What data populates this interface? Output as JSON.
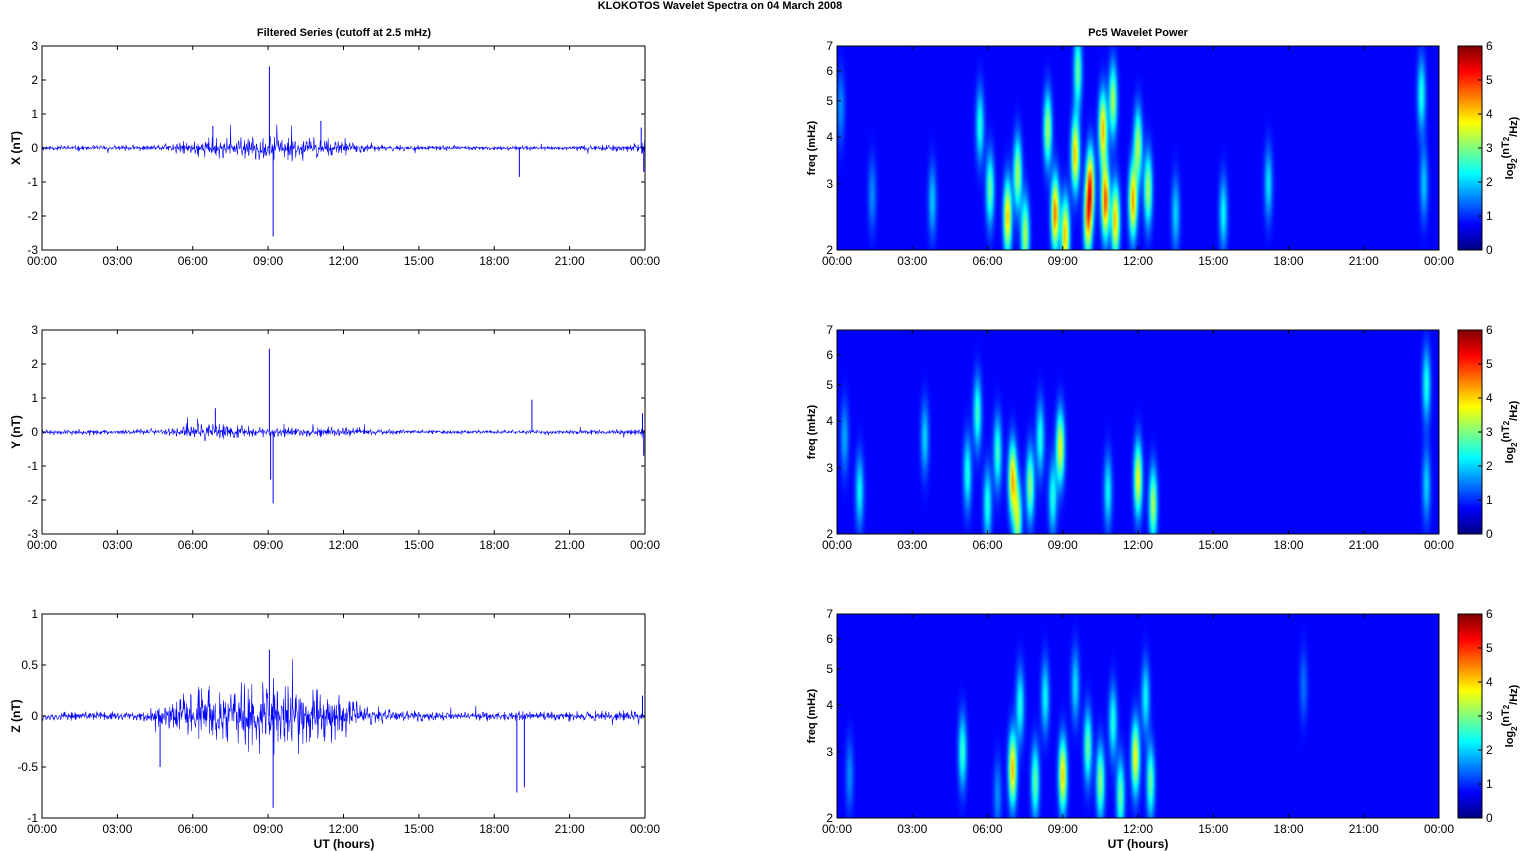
{
  "figure": {
    "suptitle": "KLOKOTOS Wavelet Spectra on 04 March     2008",
    "left_title": "Filtered Series (cutoff at 2.5 mHz)",
    "right_title": "Pc5 Wavelet Power",
    "xlabel": "UT (hours)"
  },
  "colors": {
    "series": "#0000ff",
    "axes": "#000000",
    "background": "#ffffff",
    "colormap": [
      "#00008f",
      "#0000ff",
      "#00ffff",
      "#ffff00",
      "#ff0000",
      "#800000"
    ]
  },
  "chart_data": [
    {
      "id": "x-series",
      "type": "line",
      "ylabel": "X (nT)",
      "xlim": [
        0,
        24
      ],
      "ylim": [
        -3,
        3
      ],
      "yticks": [
        -3,
        -2,
        -1,
        0,
        1,
        2,
        3
      ],
      "xtick_labels": [
        "00:00",
        "03:00",
        "06:00",
        "09:00",
        "12:00",
        "15:00",
        "18:00",
        "21:00",
        "00:00"
      ],
      "envelope": [
        {
          "x": 0.0,
          "amp": 0.08
        },
        {
          "x": 2.0,
          "amp": 0.08
        },
        {
          "x": 4.5,
          "amp": 0.1
        },
        {
          "x": 5.5,
          "amp": 0.2
        },
        {
          "x": 6.5,
          "amp": 0.35
        },
        {
          "x": 8.0,
          "amp": 0.35
        },
        {
          "x": 9.0,
          "amp": 0.45
        },
        {
          "x": 10.5,
          "amp": 0.4
        },
        {
          "x": 12.0,
          "amp": 0.25
        },
        {
          "x": 13.0,
          "amp": 0.12
        },
        {
          "x": 15.0,
          "amp": 0.08
        },
        {
          "x": 18.0,
          "amp": 0.07
        },
        {
          "x": 21.0,
          "amp": 0.07
        },
        {
          "x": 23.8,
          "amp": 0.15
        },
        {
          "x": 24.0,
          "amp": 0.4
        }
      ],
      "spikes": [
        {
          "x": 9.05,
          "y": 2.4
        },
        {
          "x": 9.2,
          "y": -2.6
        },
        {
          "x": 6.8,
          "y": 0.65
        },
        {
          "x": 11.1,
          "y": 0.8
        },
        {
          "x": 19.0,
          "y": -0.85
        },
        {
          "x": 23.85,
          "y": 0.6
        },
        {
          "x": 23.95,
          "y": -0.7
        }
      ]
    },
    {
      "id": "y-series",
      "type": "line",
      "ylabel": "Y (nT)",
      "xlim": [
        0,
        24
      ],
      "ylim": [
        -3,
        3
      ],
      "yticks": [
        -3,
        -2,
        -1,
        0,
        1,
        2,
        3
      ],
      "xtick_labels": [
        "00:00",
        "03:00",
        "06:00",
        "09:00",
        "12:00",
        "15:00",
        "18:00",
        "21:00",
        "00:00"
      ],
      "envelope": [
        {
          "x": 0.0,
          "amp": 0.09
        },
        {
          "x": 3.0,
          "amp": 0.08
        },
        {
          "x": 5.0,
          "amp": 0.12
        },
        {
          "x": 6.5,
          "amp": 0.3
        },
        {
          "x": 8.0,
          "amp": 0.25
        },
        {
          "x": 10.0,
          "amp": 0.15
        },
        {
          "x": 12.0,
          "amp": 0.2
        },
        {
          "x": 13.0,
          "amp": 0.1
        },
        {
          "x": 16.0,
          "amp": 0.07
        },
        {
          "x": 20.0,
          "amp": 0.06
        },
        {
          "x": 23.8,
          "amp": 0.1
        },
        {
          "x": 24.0,
          "amp": 0.3
        }
      ],
      "spikes": [
        {
          "x": 9.05,
          "y": 2.45
        },
        {
          "x": 9.1,
          "y": -1.4
        },
        {
          "x": 9.2,
          "y": -2.1
        },
        {
          "x": 6.9,
          "y": 0.7
        },
        {
          "x": 19.5,
          "y": 0.95
        },
        {
          "x": 23.9,
          "y": 0.55
        },
        {
          "x": 23.95,
          "y": -0.7
        }
      ]
    },
    {
      "id": "z-series",
      "type": "line",
      "ylabel": "Z (nT)",
      "xlim": [
        0,
        24
      ],
      "ylim": [
        -1,
        1
      ],
      "yticks": [
        -1,
        -0.5,
        0,
        0.5,
        1
      ],
      "xtick_labels": [
        "00:00",
        "03:00",
        "06:00",
        "09:00",
        "12:00",
        "15:00",
        "18:00",
        "21:00",
        "00:00"
      ],
      "envelope": [
        {
          "x": 0.0,
          "amp": 0.05
        },
        {
          "x": 4.0,
          "amp": 0.05
        },
        {
          "x": 5.0,
          "amp": 0.15
        },
        {
          "x": 6.0,
          "amp": 0.3
        },
        {
          "x": 7.5,
          "amp": 0.35
        },
        {
          "x": 9.0,
          "amp": 0.4
        },
        {
          "x": 10.5,
          "amp": 0.35
        },
        {
          "x": 12.0,
          "amp": 0.25
        },
        {
          "x": 13.0,
          "amp": 0.1
        },
        {
          "x": 16.0,
          "amp": 0.05
        },
        {
          "x": 20.0,
          "amp": 0.05
        },
        {
          "x": 24.0,
          "amp": 0.06
        }
      ],
      "spikes": [
        {
          "x": 9.05,
          "y": 0.65
        },
        {
          "x": 9.2,
          "y": -0.9
        },
        {
          "x": 4.7,
          "y": -0.5
        },
        {
          "x": 18.9,
          "y": -0.75
        },
        {
          "x": 19.2,
          "y": -0.7
        },
        {
          "x": 23.9,
          "y": 0.2
        }
      ]
    },
    {
      "id": "x-wavelet",
      "type": "heatmap",
      "ylabel": "freq (mHz)",
      "colorbar_label": "log2(nT2/Hz)",
      "xlim": [
        0,
        24
      ],
      "ylim": [
        2,
        7
      ],
      "yscale": "log",
      "yticks": [
        2,
        3,
        4,
        5,
        6,
        7
      ],
      "clim": [
        0,
        6
      ],
      "cticks": [
        0,
        1,
        2,
        3,
        4,
        5,
        6
      ],
      "xtick_labels": [
        "00:00",
        "03:00",
        "06:00",
        "09:00",
        "12:00",
        "15:00",
        "18:00",
        "21:00",
        "00:00"
      ],
      "blobs": [
        {
          "t": 0.15,
          "f": 4.8,
          "v": 1.0
        },
        {
          "t": 1.4,
          "f": 2.8,
          "v": 1.0
        },
        {
          "t": 3.8,
          "f": 2.7,
          "v": 1.4
        },
        {
          "t": 5.7,
          "f": 4.3,
          "v": 2.0
        },
        {
          "t": 6.1,
          "f": 2.9,
          "v": 2.5
        },
        {
          "t": 6.8,
          "f": 2.45,
          "v": 4.0
        },
        {
          "t": 7.2,
          "f": 3.2,
          "v": 3.0
        },
        {
          "t": 7.5,
          "f": 2.2,
          "v": 3.0
        },
        {
          "t": 8.4,
          "f": 4.2,
          "v": 3.0
        },
        {
          "t": 8.7,
          "f": 2.5,
          "v": 4.5
        },
        {
          "t": 9.1,
          "f": 2.2,
          "v": 4.0
        },
        {
          "t": 9.5,
          "f": 3.6,
          "v": 4.0
        },
        {
          "t": 9.6,
          "f": 6.0,
          "v": 2.5
        },
        {
          "t": 10.0,
          "f": 2.4,
          "v": 3.8
        },
        {
          "t": 10.1,
          "f": 3.0,
          "v": 4.2
        },
        {
          "t": 10.6,
          "f": 4.2,
          "v": 4.0
        },
        {
          "t": 10.7,
          "f": 2.7,
          "v": 4.8
        },
        {
          "t": 11.0,
          "f": 5.0,
          "v": 3.0
        },
        {
          "t": 11.1,
          "f": 2.4,
          "v": 4.0
        },
        {
          "t": 11.8,
          "f": 2.7,
          "v": 4.2
        },
        {
          "t": 12.0,
          "f": 3.8,
          "v": 3.0
        },
        {
          "t": 12.4,
          "f": 2.9,
          "v": 3.0
        },
        {
          "t": 13.5,
          "f": 2.5,
          "v": 1.5
        },
        {
          "t": 15.4,
          "f": 2.5,
          "v": 1.8
        },
        {
          "t": 17.2,
          "f": 3.0,
          "v": 1.6
        },
        {
          "t": 23.3,
          "f": 5.2,
          "v": 2.0
        },
        {
          "t": 23.4,
          "f": 3.0,
          "v": 1.4
        }
      ]
    },
    {
      "id": "y-wavelet",
      "type": "heatmap",
      "ylabel": "freq (mHz)",
      "colorbar_label": "log2(nT2/Hz)",
      "xlim": [
        0,
        24
      ],
      "ylim": [
        2,
        7
      ],
      "yscale": "log",
      "yticks": [
        2,
        3,
        4,
        5,
        6,
        7
      ],
      "clim": [
        0,
        6
      ],
      "cticks": [
        0,
        1,
        2,
        3,
        4,
        5,
        6
      ],
      "xtick_labels": [
        "00:00",
        "03:00",
        "06:00",
        "09:00",
        "12:00",
        "15:00",
        "18:00",
        "21:00",
        "00:00"
      ],
      "blobs": [
        {
          "t": 0.3,
          "f": 3.6,
          "v": 1.2
        },
        {
          "t": 0.9,
          "f": 2.6,
          "v": 1.8
        },
        {
          "t": 3.5,
          "f": 3.6,
          "v": 1.5
        },
        {
          "t": 5.2,
          "f": 2.9,
          "v": 2.0
        },
        {
          "t": 5.6,
          "f": 4.2,
          "v": 2.2
        },
        {
          "t": 6.0,
          "f": 2.4,
          "v": 2.0
        },
        {
          "t": 6.4,
          "f": 3.3,
          "v": 2.2
        },
        {
          "t": 7.0,
          "f": 2.8,
          "v": 4.0
        },
        {
          "t": 7.2,
          "f": 2.2,
          "v": 3.0
        },
        {
          "t": 7.7,
          "f": 2.7,
          "v": 2.8
        },
        {
          "t": 8.1,
          "f": 3.6,
          "v": 2.0
        },
        {
          "t": 8.6,
          "f": 2.5,
          "v": 2.0
        },
        {
          "t": 8.9,
          "f": 3.4,
          "v": 3.5
        },
        {
          "t": 10.8,
          "f": 2.6,
          "v": 1.8
        },
        {
          "t": 12.0,
          "f": 2.8,
          "v": 3.5
        },
        {
          "t": 12.6,
          "f": 2.4,
          "v": 3.0
        },
        {
          "t": 23.5,
          "f": 5.0,
          "v": 2.0
        },
        {
          "t": 23.5,
          "f": 2.7,
          "v": 1.5
        }
      ]
    },
    {
      "id": "z-wavelet",
      "type": "heatmap",
      "ylabel": "freq (mHz)",
      "colorbar_label": "log2(nT2/Hz)",
      "xlim": [
        0,
        24
      ],
      "ylim": [
        2,
        7
      ],
      "yscale": "log",
      "yticks": [
        2,
        3,
        4,
        5,
        6,
        7
      ],
      "clim": [
        0,
        6
      ],
      "cticks": [
        0,
        1,
        2,
        3,
        4,
        5,
        6
      ],
      "xtick_labels": [
        "00:00",
        "03:00",
        "06:00",
        "09:00",
        "12:00",
        "15:00",
        "18:00",
        "21:00",
        "00:00"
      ],
      "blobs": [
        {
          "t": 0.5,
          "f": 2.6,
          "v": 1.0
        },
        {
          "t": 5.0,
          "f": 3.0,
          "v": 2.2
        },
        {
          "t": 6.4,
          "f": 2.3,
          "v": 1.0
        },
        {
          "t": 7.0,
          "f": 2.7,
          "v": 4.0
        },
        {
          "t": 7.3,
          "f": 4.0,
          "v": 2.0
        },
        {
          "t": 7.9,
          "f": 2.5,
          "v": 2.5
        },
        {
          "t": 8.3,
          "f": 4.2,
          "v": 1.8
        },
        {
          "t": 9.0,
          "f": 2.6,
          "v": 3.8
        },
        {
          "t": 9.5,
          "f": 4.5,
          "v": 1.6
        },
        {
          "t": 10.0,
          "f": 3.1,
          "v": 2.5
        },
        {
          "t": 10.5,
          "f": 2.5,
          "v": 2.8
        },
        {
          "t": 11.0,
          "f": 3.6,
          "v": 2.0
        },
        {
          "t": 11.3,
          "f": 2.3,
          "v": 2.5
        },
        {
          "t": 11.9,
          "f": 2.9,
          "v": 3.6
        },
        {
          "t": 12.3,
          "f": 4.2,
          "v": 1.8
        },
        {
          "t": 12.5,
          "f": 2.5,
          "v": 2.5
        },
        {
          "t": 18.6,
          "f": 4.5,
          "v": 0.8
        }
      ]
    }
  ]
}
